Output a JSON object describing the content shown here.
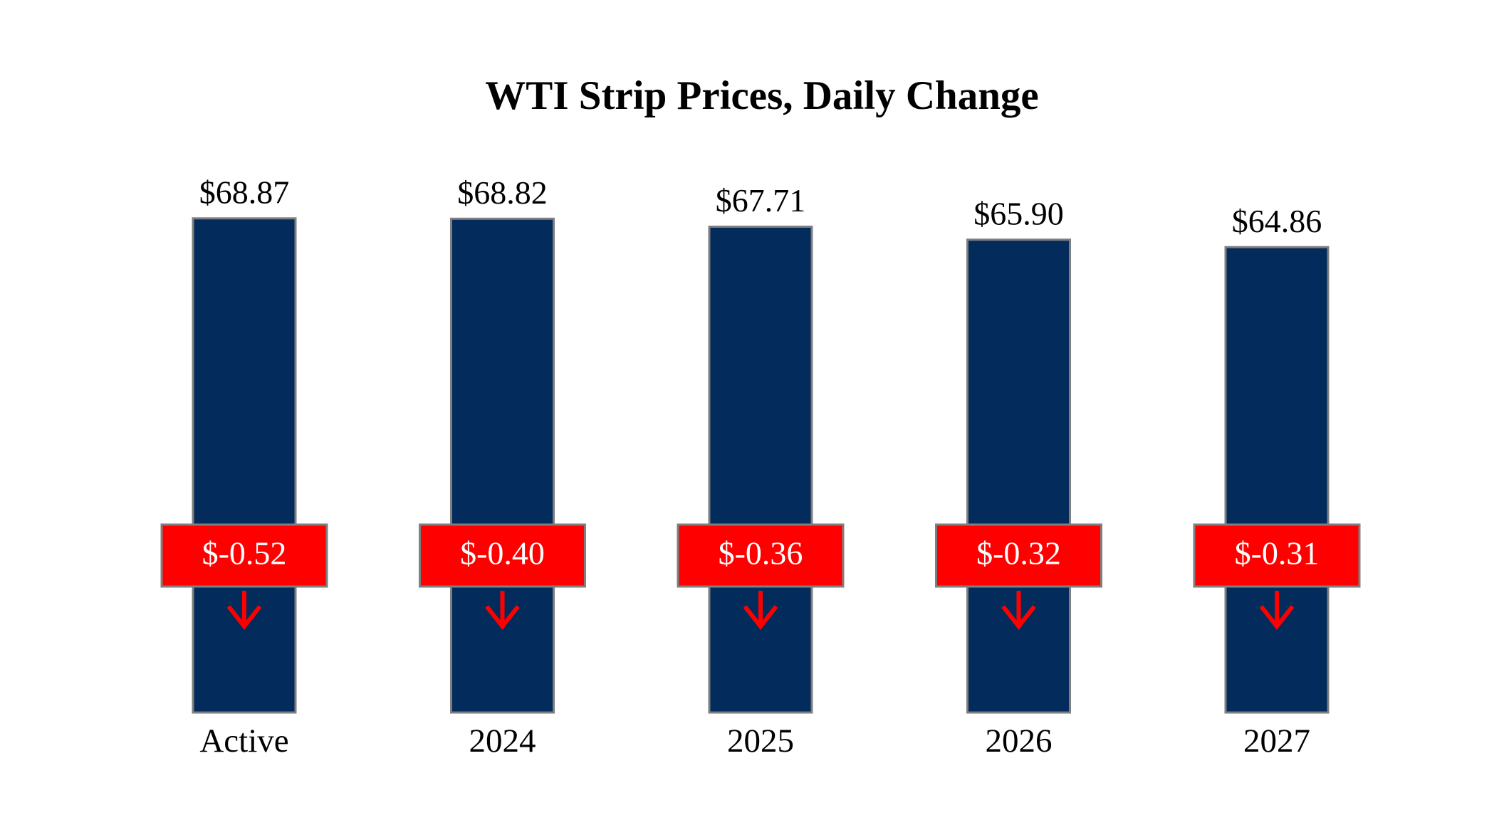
{
  "chart_data": {
    "type": "bar",
    "title": "WTI Strip Prices, Daily Change",
    "categories": [
      "Active",
      "2024",
      "2025",
      "2026",
      "2027"
    ],
    "values": [
      68.87,
      68.82,
      67.71,
      65.9,
      64.86
    ],
    "value_labels": [
      "$68.87",
      "$68.82",
      "$67.71",
      "$65.90",
      "$64.86"
    ],
    "changes": [
      -0.52,
      -0.4,
      -0.36,
      -0.32,
      -0.31
    ],
    "change_labels": [
      "$-0.52",
      "$-0.40",
      "$-0.36",
      "$-0.32",
      "$-0.31"
    ],
    "color": "#032b5b",
    "change_color": "#ff0000",
    "ylim": [
      0,
      75
    ]
  }
}
